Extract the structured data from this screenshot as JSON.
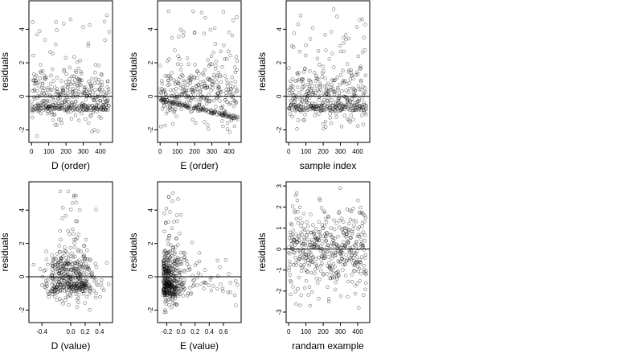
{
  "panels": [
    {
      "type": "scatter",
      "xlabel": "D (order)",
      "ylabel": "residuals",
      "xlim": [
        -15,
        470
      ],
      "ylim": [
        -2.75,
        5.7
      ],
      "xticks": [
        0,
        100,
        200,
        300,
        400
      ],
      "xtick_labels": [
        "0",
        "100",
        "200",
        "300",
        "400"
      ],
      "yticks": [
        -2,
        0,
        2,
        4
      ],
      "ytick_labels": [
        "-2",
        "0",
        "2",
        "4"
      ],
      "hline": 0,
      "marker": "open-circle",
      "n_points": 450,
      "pattern": "order",
      "seed": 11
    },
    {
      "type": "scatter",
      "xlabel": "E (order)",
      "ylabel": "residuals",
      "xlim": [
        -15,
        470
      ],
      "ylim": [
        -2.75,
        5.7
      ],
      "xticks": [
        0,
        100,
        200,
        300,
        400
      ],
      "xtick_labels": [
        "0",
        "100",
        "200",
        "300",
        "400"
      ],
      "yticks": [
        -2,
        0,
        2,
        4
      ],
      "ytick_labels": [
        "-2",
        "0",
        "2",
        "4"
      ],
      "hline": 0,
      "marker": "open-circle",
      "n_points": 450,
      "pattern": "trend",
      "seed": 23
    },
    {
      "type": "scatter",
      "xlabel": "sample index",
      "ylabel": "residuals",
      "xlim": [
        -15,
        470
      ],
      "ylim": [
        -2.75,
        5.7
      ],
      "xticks": [
        0,
        100,
        200,
        300,
        400
      ],
      "xtick_labels": [
        "0",
        "100",
        "200",
        "300",
        "400"
      ],
      "yticks": [
        -2,
        0,
        2,
        4
      ],
      "ytick_labels": [
        "-2",
        "0",
        "2",
        "4"
      ],
      "hline": 0,
      "marker": "open-circle",
      "n_points": 450,
      "pattern": "order",
      "seed": 37
    },
    {
      "type": "scatter",
      "xlabel": "D (value)",
      "ylabel": "residuals",
      "xlim": [
        -0.58,
        0.58
      ],
      "ylim": [
        -2.75,
        5.7
      ],
      "xticks": [
        -0.4,
        0,
        0.2,
        0.4
      ],
      "xtick_labels": [
        "-0.4",
        "0.0",
        "0.2",
        "0.4"
      ],
      "yticks": [
        -2,
        0,
        2,
        4
      ],
      "ytick_labels": [
        "-2",
        "0",
        "2",
        "4"
      ],
      "hline": 0,
      "marker": "open-circle",
      "n_points": 450,
      "pattern": "dvalue",
      "seed": 41
    },
    {
      "type": "scatter",
      "xlabel": "E (value)",
      "ylabel": "residuals",
      "xlim": [
        -0.33,
        0.85
      ],
      "ylim": [
        -2.75,
        5.7
      ],
      "xticks": [
        -0.2,
        0,
        0.2,
        0.4,
        0.6
      ],
      "xtick_labels": [
        "-0.2",
        "0.0",
        "0.2",
        "0.4",
        "0.6"
      ],
      "yticks": [
        -2,
        0,
        2,
        4
      ],
      "ytick_labels": [
        "-2",
        "0",
        "2",
        "4"
      ],
      "hline": 0,
      "marker": "open-circle",
      "n_points": 450,
      "pattern": "evalue",
      "seed": 53
    },
    {
      "type": "scatter",
      "xlabel": "randam example",
      "ylabel": "residuals",
      "xlim": [
        -15,
        470
      ],
      "ylim": [
        -3.5,
        3.2
      ],
      "xticks": [
        0,
        100,
        200,
        300,
        400
      ],
      "xtick_labels": [
        "0",
        "100",
        "200",
        "300",
        "400"
      ],
      "yticks": [
        -3,
        -2,
        -1,
        0,
        1,
        2,
        3
      ],
      "ytick_labels": [
        "-3",
        "-2",
        "-1",
        "0",
        "1",
        "2",
        "3"
      ],
      "hline": 0,
      "marker": "open-circle",
      "n_points": 450,
      "pattern": "normal",
      "seed": 67
    }
  ],
  "colors": {
    "marker": "#000000",
    "frame": "#000000",
    "background": "#ffffff"
  }
}
